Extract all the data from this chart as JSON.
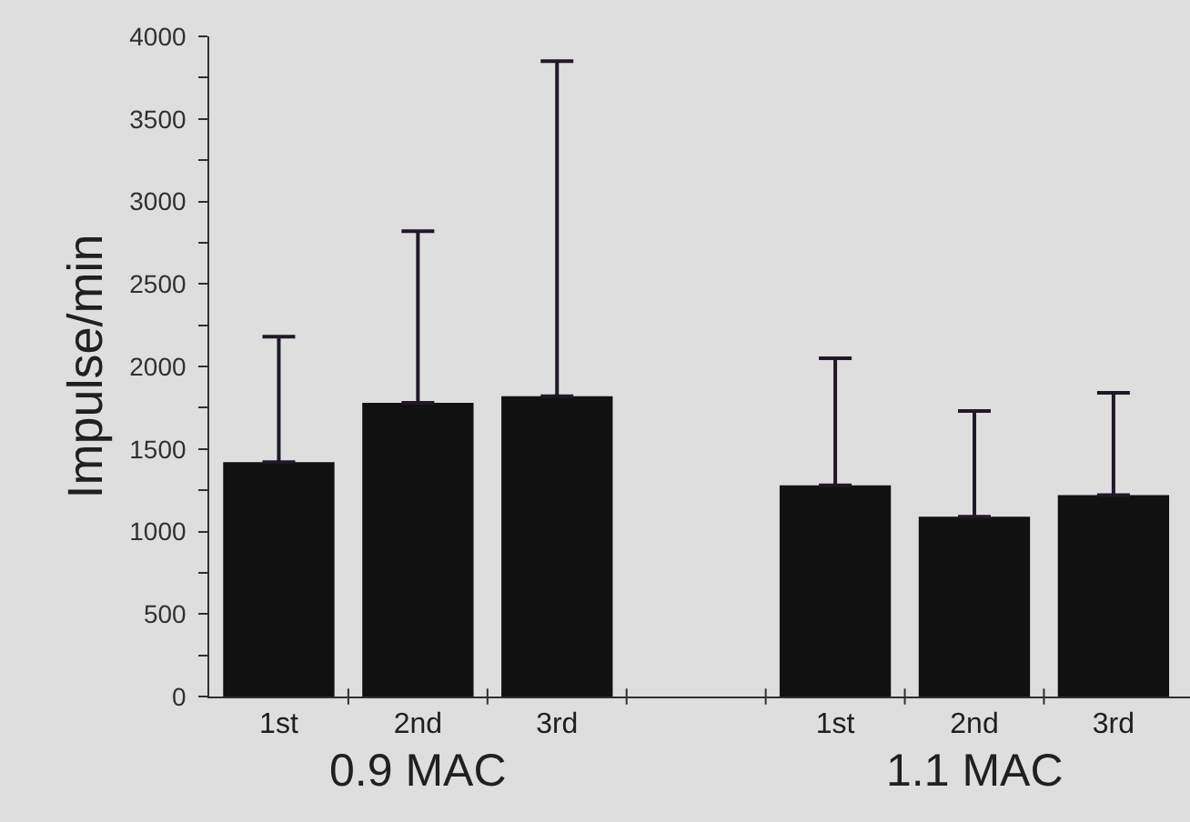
{
  "chart_data": {
    "type": "bar",
    "ylabel": "Impulse/min",
    "categories": [
      "1st",
      "2nd",
      "3rd",
      null,
      "1st",
      "2nd",
      "3rd"
    ],
    "series": [
      {
        "color": "#111111",
        "values": [
          1420,
          1780,
          1820,
          null,
          1280,
          1090,
          1220
        ],
        "errors": [
          [
            1420,
            2180
          ],
          [
            1780,
            2820
          ],
          [
            1820,
            3850
          ],
          null,
          [
            1280,
            2050
          ],
          [
            1090,
            1730
          ],
          [
            1220,
            1840
          ]
        ]
      }
    ],
    "annotations": [
      "0.9 MAC",
      "1.1 MAC"
    ],
    "ylim": [
      0,
      4000
    ],
    "yticks": [
      0,
      {
        "value": 250,
        "label": null
      },
      500,
      {
        "value": 750,
        "label": null
      },
      1000,
      {
        "value": 1250,
        "label": null
      },
      1500,
      {
        "value": 1750,
        "label": null
      },
      2000,
      {
        "value": 2250,
        "label": null
      },
      2500,
      {
        "value": 2750,
        "label": null
      },
      3000,
      {
        "value": 3250,
        "label": null
      },
      3500,
      {
        "value": 3750,
        "label": null
      },
      4000
    ],
    "grid": false,
    "legend": false
  }
}
